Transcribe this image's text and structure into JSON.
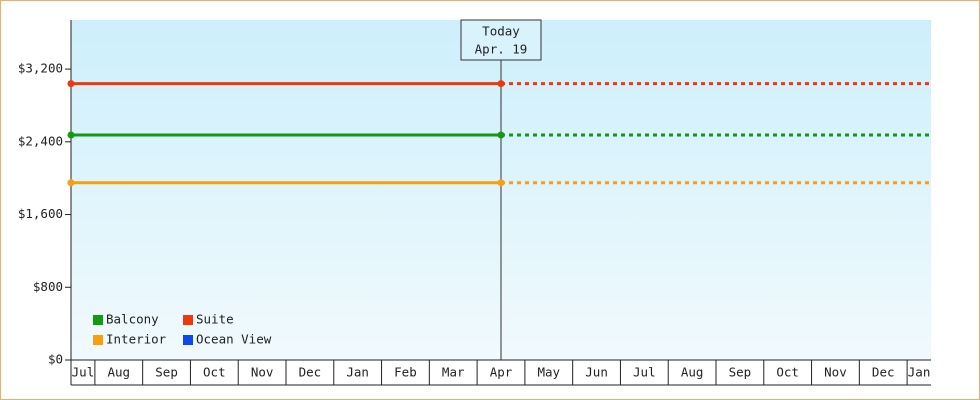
{
  "chart_data": {
    "type": "line",
    "categories": [
      "Jul",
      "Aug",
      "Sep",
      "Oct",
      "Nov",
      "Dec",
      "Jan",
      "Feb",
      "Mar",
      "Apr",
      "May",
      "Jun",
      "Jul",
      "Aug",
      "Sep",
      "Oct",
      "Nov",
      "Dec",
      "Jan"
    ],
    "series": [
      {
        "name": "Balcony",
        "color": "#129a12",
        "values": [
          2475,
          2475,
          2475,
          2475,
          2475,
          2475,
          2475,
          2475,
          2475,
          2475,
          2475,
          2475,
          2475,
          2475,
          2475,
          2475,
          2475,
          2475,
          2475
        ]
      },
      {
        "name": "Suite",
        "color": "#f0380c",
        "values": [
          3040,
          3040,
          3040,
          3040,
          3040,
          3040,
          3040,
          3040,
          3040,
          3040,
          3040,
          3040,
          3040,
          3040,
          3040,
          3040,
          3040,
          3040,
          3040
        ]
      },
      {
        "name": "Interior",
        "color": "#f5a00f",
        "values": [
          1950,
          1950,
          1950,
          1950,
          1950,
          1950,
          1950,
          1950,
          1950,
          1950,
          1950,
          1950,
          1950,
          1950,
          1950,
          1950,
          1950,
          1950,
          1950
        ]
      },
      {
        "name": "Ocean View",
        "color": "#1048f0",
        "values": [
          null,
          null,
          null,
          null,
          null,
          null,
          null,
          null,
          null,
          null,
          null,
          null,
          null,
          null,
          null,
          null,
          null,
          null,
          null
        ]
      }
    ],
    "ylim": [
      0,
      3740
    ],
    "yticks": [
      {
        "value": 0,
        "label": "$0"
      },
      {
        "value": 800,
        "label": "$800"
      },
      {
        "value": 1600,
        "label": "$1,600"
      },
      {
        "value": 2400,
        "label": "$2,400"
      },
      {
        "value": 3200,
        "label": "$3,200"
      }
    ],
    "annotation": {
      "text": [
        "Today",
        "Apr. 19"
      ],
      "at": "Apr"
    },
    "legend": "lower left"
  }
}
